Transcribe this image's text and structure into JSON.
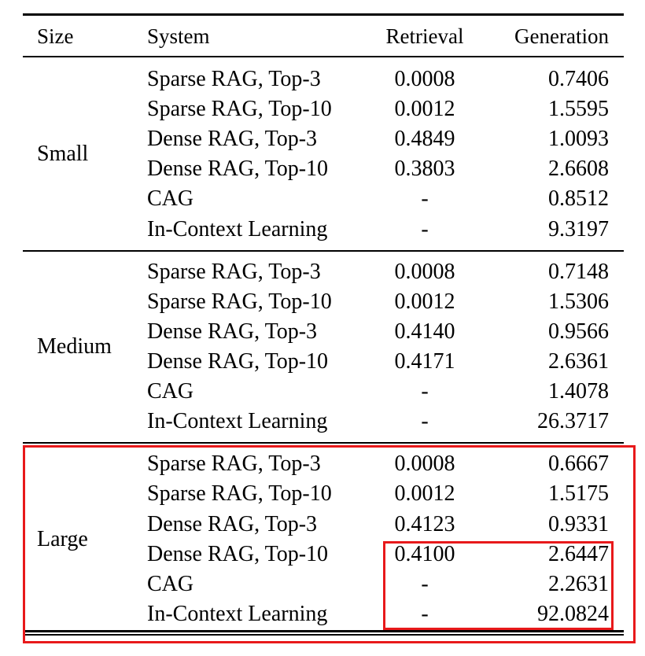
{
  "table": {
    "headers": {
      "size": "Size",
      "system": "System",
      "retrieval": "Retrieval",
      "generation": "Generation"
    },
    "groups": [
      {
        "size": "Small",
        "rows": [
          {
            "system": "Sparse RAG, Top-3",
            "retrieval": "0.0008",
            "generation": "0.7406"
          },
          {
            "system": "Sparse RAG, Top-10",
            "retrieval": "0.0012",
            "generation": "1.5595"
          },
          {
            "system": "Dense RAG, Top-3",
            "retrieval": "0.4849",
            "generation": "1.0093"
          },
          {
            "system": "Dense RAG, Top-10",
            "retrieval": "0.3803",
            "generation": "2.6608"
          },
          {
            "system": "CAG",
            "retrieval": "-",
            "generation": "0.8512"
          },
          {
            "system": "In-Context Learning",
            "retrieval": "-",
            "generation": "9.3197"
          }
        ]
      },
      {
        "size": "Medium",
        "rows": [
          {
            "system": "Sparse RAG, Top-3",
            "retrieval": "0.0008",
            "generation": "0.7148"
          },
          {
            "system": "Sparse RAG, Top-10",
            "retrieval": "0.0012",
            "generation": "1.5306"
          },
          {
            "system": "Dense RAG, Top-3",
            "retrieval": "0.4140",
            "generation": "0.9566"
          },
          {
            "system": "Dense RAG, Top-10",
            "retrieval": "0.4171",
            "generation": "2.6361"
          },
          {
            "system": "CAG",
            "retrieval": "-",
            "generation": "1.4078"
          },
          {
            "system": "In-Context Learning",
            "retrieval": "-",
            "generation": "26.3717"
          }
        ]
      },
      {
        "size": "Large",
        "rows": [
          {
            "system": "Sparse RAG, Top-3",
            "retrieval": "0.0008",
            "generation": "0.6667"
          },
          {
            "system": "Sparse RAG, Top-10",
            "retrieval": "0.0012",
            "generation": "1.5175"
          },
          {
            "system": "Dense RAG, Top-3",
            "retrieval": "0.4123",
            "generation": "0.9331"
          },
          {
            "system": "Dense RAG, Top-10",
            "retrieval": "0.4100",
            "generation": "2.6447"
          },
          {
            "system": "CAG",
            "retrieval": "-",
            "generation": "2.2631"
          },
          {
            "system": "In-Context Learning",
            "retrieval": "-",
            "generation": "92.0824"
          }
        ]
      }
    ]
  },
  "annotations": {
    "highlight_color": "#e8191b"
  }
}
